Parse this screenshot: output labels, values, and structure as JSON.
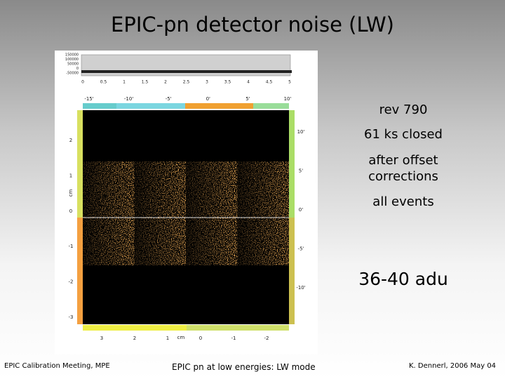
{
  "title": "EPIC-pn detector noise  (LW)",
  "notes": [
    "rev 790",
    "61 ks closed",
    "after offset corrections",
    "all events"
  ],
  "highlight": "36-40 adu",
  "footer": {
    "left": "EPIC Calibration Meeting, MPE",
    "center": "EPIC pn at low energies: LW mode",
    "right": "K. Dennerl, 2006 May 04"
  },
  "figure": {
    "colorbar_ticks": [
      "150000",
      "100000",
      "50000",
      "0",
      "-50000"
    ],
    "energy_ticks": [
      "0",
      "0.5",
      "1",
      "1.5",
      "2",
      "2.5",
      "3",
      "3.5",
      "4",
      "4.5",
      "5"
    ],
    "top_ticks": [
      "-15'",
      "-10'",
      "-5'",
      "0'",
      "5'",
      "10'"
    ],
    "left_ticks": [
      "2",
      "1",
      "0",
      "-1",
      "-2",
      "-3"
    ],
    "left_unit": "cm",
    "right_ticks": [
      "10'",
      "5'",
      "0'",
      "-5'",
      "-10'"
    ],
    "bottom_ticks": [
      "3",
      "2",
      "1",
      "0",
      "-1",
      "-2"
    ],
    "bottom_unit": "cm"
  }
}
